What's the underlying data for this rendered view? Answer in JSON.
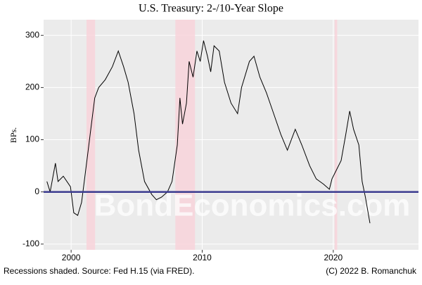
{
  "chart_data": {
    "type": "line",
    "title": "U.S. Treasury: 2-/10-Year Slope",
    "y_label": "BPs.",
    "watermark": "BondEconomics.com",
    "caption_left": "Recessions shaded. Source: Fed H.15 (via FRED).",
    "caption_right": "(C) 2022 B. Romanchuk",
    "xlim": [
      1997.9,
      2026.5
    ],
    "xticks": [
      2000,
      2010,
      2020
    ],
    "ylim": [
      -111,
      330
    ],
    "yticks": [
      -100,
      0,
      100,
      200,
      300
    ],
    "grid": true,
    "hline": 0,
    "hline_color": "#3b3b8f",
    "recessions": [
      [
        2001.17,
        2001.83
      ],
      [
        2007.95,
        2009.45
      ],
      [
        2020.1,
        2020.3
      ]
    ],
    "recession_color": "#f8d3da",
    "series": [
      {
        "name": "2-/10-Year Slope",
        "color": "#000000",
        "x": [
          1998.15,
          1998.4,
          1998.8,
          1999.0,
          1999.4,
          1999.95,
          2000.2,
          2000.5,
          2000.8,
          2001.0,
          2001.3,
          2001.55,
          2001.8,
          2002.1,
          2002.6,
          2003.15,
          2003.6,
          2004.0,
          2004.35,
          2004.8,
          2005.15,
          2005.6,
          2006.15,
          2006.5,
          2006.9,
          2007.35,
          2007.7,
          2008.1,
          2008.3,
          2008.5,
          2008.8,
          2009.0,
          2009.3,
          2009.6,
          2009.85,
          2010.1,
          2010.4,
          2010.65,
          2010.9,
          2011.3,
          2011.7,
          2012.2,
          2012.7,
          2013.0,
          2013.6,
          2013.95,
          2014.4,
          2014.9,
          2015.45,
          2016.0,
          2016.5,
          2017.1,
          2017.6,
          2018.2,
          2018.7,
          2019.25,
          2019.7,
          2019.9,
          2020.2,
          2020.6,
          2020.95,
          2021.25,
          2021.55,
          2021.95,
          2022.2,
          2022.45,
          2022.8
        ],
        "values": [
          20,
          0,
          55,
          20,
          30,
          10,
          -40,
          -45,
          -20,
          20,
          80,
          130,
          180,
          200,
          215,
          240,
          270,
          240,
          210,
          150,
          80,
          20,
          -5,
          -15,
          -10,
          0,
          20,
          90,
          180,
          130,
          170,
          250,
          220,
          270,
          250,
          290,
          260,
          230,
          280,
          270,
          210,
          170,
          150,
          200,
          250,
          260,
          220,
          190,
          150,
          110,
          80,
          120,
          90,
          50,
          25,
          15,
          5,
          25,
          40,
          60,
          110,
          155,
          120,
          90,
          20,
          -10,
          -60
        ]
      }
    ]
  }
}
